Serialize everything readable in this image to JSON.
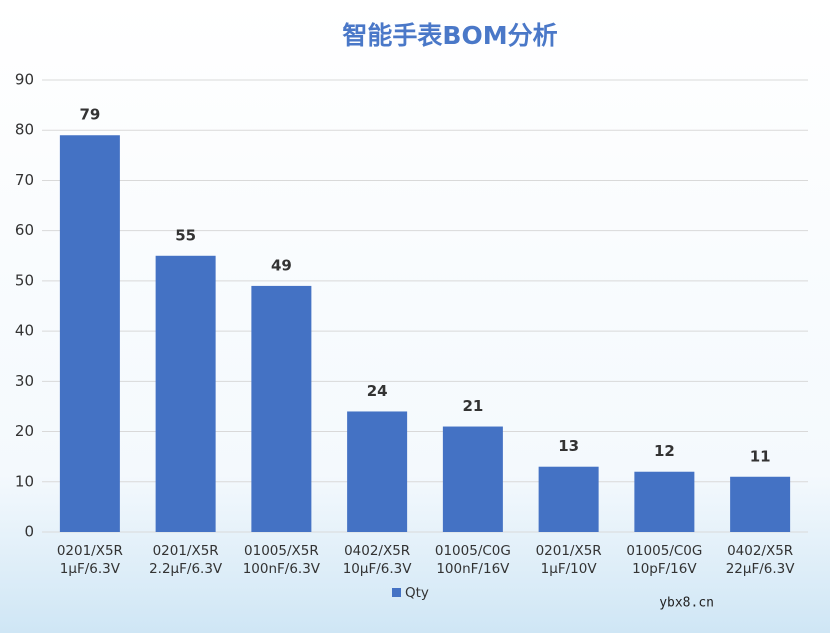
{
  "chart_data": {
    "type": "bar",
    "title": "智能手表BOM分析",
    "categories": [
      [
        "0201/X5R",
        "1μF/6.3V"
      ],
      [
        "0201/X5R",
        "2.2μF/6.3V"
      ],
      [
        "01005/X5R",
        "100nF/6.3V"
      ],
      [
        "0402/X5R",
        "10μF/6.3V"
      ],
      [
        "01005/C0G",
        "100nF/16V"
      ],
      [
        "0201/X5R",
        "1μF/10V"
      ],
      [
        "01005/C0G",
        "10pF/16V"
      ],
      [
        "0402/X5R",
        "22μF/6.3V"
      ]
    ],
    "series": [
      {
        "name": "Qty",
        "color": "#4472c4",
        "values": [
          79,
          55,
          49,
          24,
          21,
          13,
          12,
          11
        ]
      }
    ],
    "ylim": [
      0,
      90
    ],
    "yticks": [
      0,
      10,
      20,
      30,
      40,
      50,
      60,
      70,
      80,
      90
    ],
    "grid": true,
    "legend": "bottom",
    "watermark": "ybx8.cn"
  }
}
